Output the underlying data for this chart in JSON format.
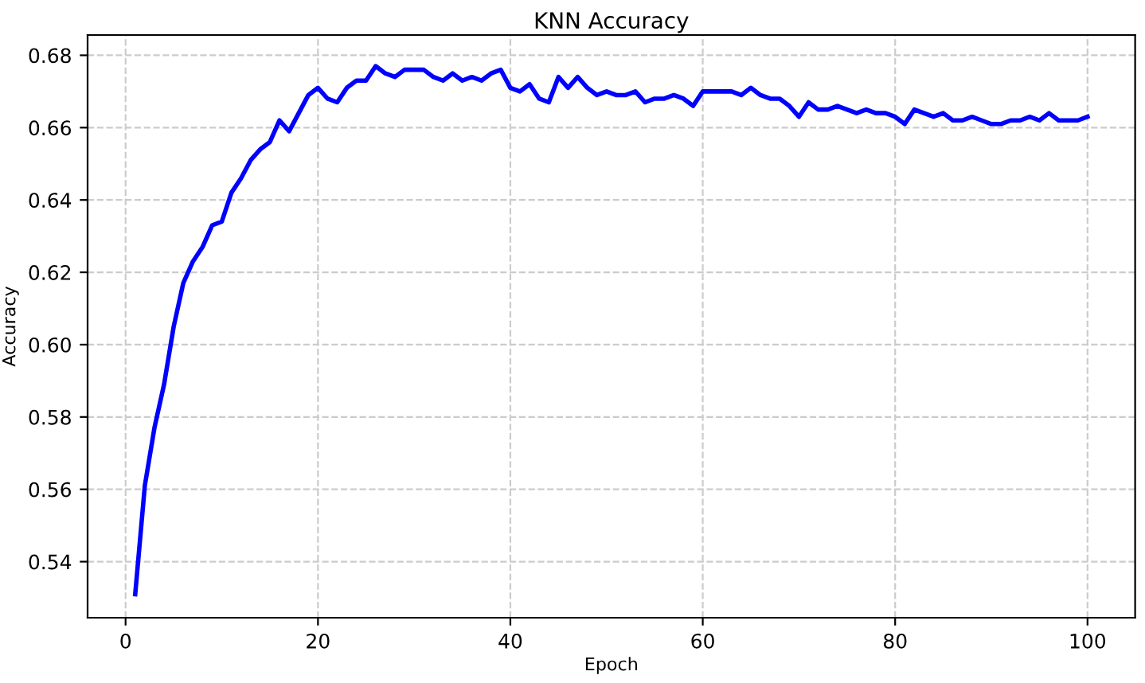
{
  "chart_data": {
    "type": "line",
    "title": "KNN Accuracy",
    "xlabel": "Epoch",
    "ylabel": "Accuracy",
    "x": [
      1,
      2,
      3,
      4,
      5,
      6,
      7,
      8,
      9,
      10,
      11,
      12,
      13,
      14,
      15,
      16,
      17,
      18,
      19,
      20,
      21,
      22,
      23,
      24,
      25,
      26,
      27,
      28,
      29,
      30,
      31,
      32,
      33,
      34,
      35,
      36,
      37,
      38,
      39,
      40,
      41,
      42,
      43,
      44,
      45,
      46,
      47,
      48,
      49,
      50,
      51,
      52,
      53,
      54,
      55,
      56,
      57,
      58,
      59,
      60,
      61,
      62,
      63,
      64,
      65,
      66,
      67,
      68,
      69,
      70,
      71,
      72,
      73,
      74,
      75,
      76,
      77,
      78,
      79,
      80,
      81,
      82,
      83,
      84,
      85,
      86,
      87,
      88,
      89,
      90,
      91,
      92,
      93,
      94,
      95,
      96,
      97,
      98,
      99,
      100
    ],
    "series": [
      {
        "color": "#0000ff",
        "values": [
          0.531,
          0.561,
          0.577,
          0.589,
          0.605,
          0.617,
          0.623,
          0.627,
          0.633,
          0.634,
          0.642,
          0.646,
          0.651,
          0.654,
          0.656,
          0.662,
          0.659,
          0.664,
          0.669,
          0.671,
          0.668,
          0.667,
          0.671,
          0.673,
          0.673,
          0.677,
          0.675,
          0.674,
          0.676,
          0.676,
          0.676,
          0.674,
          0.673,
          0.675,
          0.673,
          0.674,
          0.673,
          0.675,
          0.676,
          0.671,
          0.67,
          0.672,
          0.668,
          0.667,
          0.674,
          0.671,
          0.674,
          0.671,
          0.669,
          0.67,
          0.669,
          0.669,
          0.67,
          0.667,
          0.668,
          0.668,
          0.669,
          0.668,
          0.666,
          0.67,
          0.67,
          0.67,
          0.67,
          0.669,
          0.671,
          0.669,
          0.668,
          0.668,
          0.666,
          0.663,
          0.667,
          0.665,
          0.665,
          0.666,
          0.665,
          0.664,
          0.665,
          0.664,
          0.664,
          0.663,
          0.661,
          0.665,
          0.664,
          0.663,
          0.664,
          0.662,
          0.662,
          0.663,
          0.662,
          0.661,
          0.661,
          0.662,
          0.662,
          0.663,
          0.662,
          0.664,
          0.662,
          0.662,
          0.662,
          0.663
        ]
      }
    ],
    "xlim": [
      -3.95,
      104.95
    ],
    "ylim": [
      0.5245,
      0.6856
    ],
    "xticks": [
      0,
      20,
      40,
      60,
      80,
      100
    ],
    "yticks": [
      {
        "value": 0.54,
        "label": "0.54"
      },
      {
        "value": 0.56,
        "label": "0.56"
      },
      {
        "value": 0.58,
        "label": "0.58"
      },
      {
        "value": 0.6,
        "label": "0.60"
      },
      {
        "value": 0.62,
        "label": "0.62"
      },
      {
        "value": 0.64,
        "label": "0.64"
      },
      {
        "value": 0.66,
        "label": "0.66"
      },
      {
        "value": 0.68,
        "label": "0.68"
      }
    ],
    "grid": true,
    "line_style": "solid",
    "marker": "none"
  }
}
